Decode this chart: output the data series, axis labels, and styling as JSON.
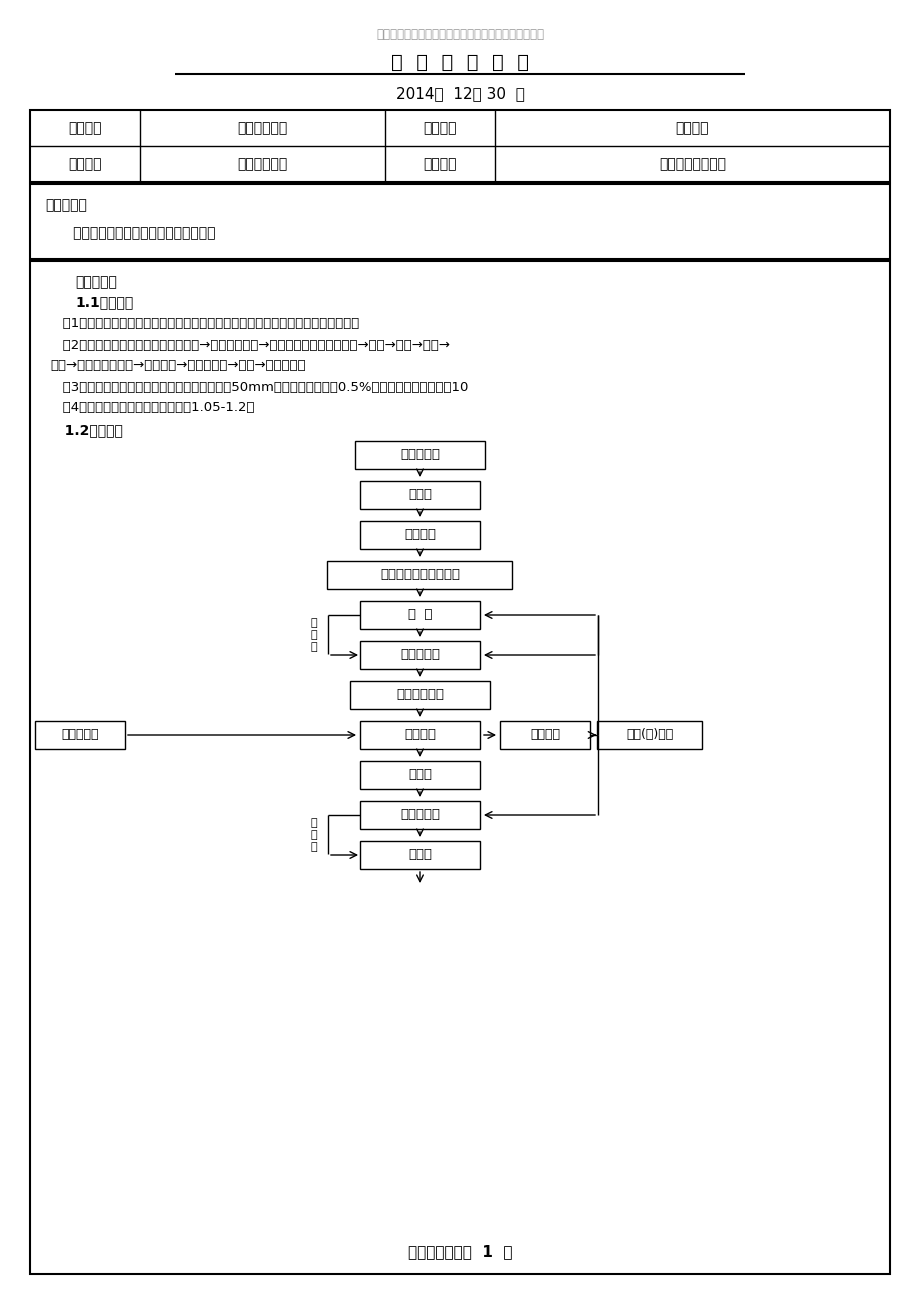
{
  "watermark": "精品文档，仅供学习与交流，如有侵权请联系网站删除",
  "title": "技  术  交  底  记  录",
  "date": "2014年  12月 30  日",
  "table1": {
    "row1": [
      "工程名称",
      "百特扩建项目",
      "施工单位",
      "华仁建设"
    ],
    "row2": [
      "交底部位",
      "基础桩基工程",
      "工序名称",
      "钢筋混凝土灌注桩"
    ]
  },
  "section_jiaodi": "交底提要：",
  "jiaodi_content": "   钢筋混凝土灌注桩施工工艺及施工方法",
  "section_content": "交底内容：",
  "section_11": "1.1施工要求",
  "para1": "   （1）灌注桩施工前，根据设计要求进一步确定施工设备、施工工艺以及技术要求。",
  "para2": "   （2）钻孔灌注桩工艺流程：埋设护筒→注入护壁泥浆→桩机就位（钢筋笼制作）→钻孔→排渣→清孔→",
  "para2b": "筋笼→下放混凝土导管→二次清孔→浇筑混凝土→成桩→机器移位。",
  "para3": "   （3）钻孔灌注桩施工时应保证桩径偏差不大于50mm，垂直度偏差小于0.5%，桩位允许偏差不大于10",
  "para4": "   （4）钻孔灌注桩施工时，充盈系数1.05-1.2。",
  "section_12": "   1.2工艺流程",
  "flow_boxes": [
    "放线定桩位",
    "挖导槽",
    "埋设护筒",
    "钻机定位，调整垂直度",
    "成  孔",
    "第一次清孔",
    "测孔深、沉淀",
    "下钢筋笼",
    "下导管",
    "第二次清孔",
    "测沉渣"
  ],
  "side_box_left": "钢筋笼制作",
  "side_box_right_top": "泥浆循环",
  "side_box_right_far": "废浆(土)外运",
  "footer": "【精品文档】第  1  页",
  "bg_color": "#ffffff",
  "border_color": "#000000"
}
